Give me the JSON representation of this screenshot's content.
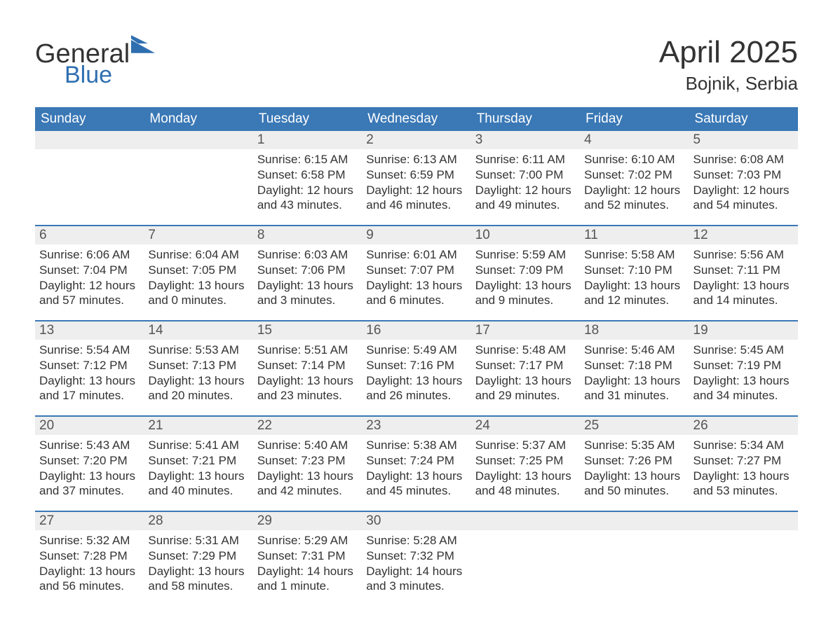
{
  "brand": {
    "word1": "General",
    "word2": "Blue",
    "color_general": "#333333",
    "color_blue": "#2f6fb0",
    "logo_fill": "#2f6fb0"
  },
  "header": {
    "month_title": "April 2025",
    "location": "Bojnik, Serbia"
  },
  "colors": {
    "header_bg": "#3a78b6",
    "header_text": "#ffffff",
    "daynum_bg": "#eeeeee",
    "body_text": "#333333",
    "rule": "#3a78b6"
  },
  "weekdays": [
    "Sunday",
    "Monday",
    "Tuesday",
    "Wednesday",
    "Thursday",
    "Friday",
    "Saturday"
  ],
  "weeks": [
    [
      {
        "day": "",
        "lines": []
      },
      {
        "day": "",
        "lines": []
      },
      {
        "day": "1",
        "lines": [
          "Sunrise: 6:15 AM",
          "Sunset: 6:58 PM",
          "Daylight: 12 hours and 43 minutes."
        ]
      },
      {
        "day": "2",
        "lines": [
          "Sunrise: 6:13 AM",
          "Sunset: 6:59 PM",
          "Daylight: 12 hours and 46 minutes."
        ]
      },
      {
        "day": "3",
        "lines": [
          "Sunrise: 6:11 AM",
          "Sunset: 7:00 PM",
          "Daylight: 12 hours and 49 minutes."
        ]
      },
      {
        "day": "4",
        "lines": [
          "Sunrise: 6:10 AM",
          "Sunset: 7:02 PM",
          "Daylight: 12 hours and 52 minutes."
        ]
      },
      {
        "day": "5",
        "lines": [
          "Sunrise: 6:08 AM",
          "Sunset: 7:03 PM",
          "Daylight: 12 hours and 54 minutes."
        ]
      }
    ],
    [
      {
        "day": "6",
        "lines": [
          "Sunrise: 6:06 AM",
          "Sunset: 7:04 PM",
          "Daylight: 12 hours and 57 minutes."
        ]
      },
      {
        "day": "7",
        "lines": [
          "Sunrise: 6:04 AM",
          "Sunset: 7:05 PM",
          "Daylight: 13 hours and 0 minutes."
        ]
      },
      {
        "day": "8",
        "lines": [
          "Sunrise: 6:03 AM",
          "Sunset: 7:06 PM",
          "Daylight: 13 hours and 3 minutes."
        ]
      },
      {
        "day": "9",
        "lines": [
          "Sunrise: 6:01 AM",
          "Sunset: 7:07 PM",
          "Daylight: 13 hours and 6 minutes."
        ]
      },
      {
        "day": "10",
        "lines": [
          "Sunrise: 5:59 AM",
          "Sunset: 7:09 PM",
          "Daylight: 13 hours and 9 minutes."
        ]
      },
      {
        "day": "11",
        "lines": [
          "Sunrise: 5:58 AM",
          "Sunset: 7:10 PM",
          "Daylight: 13 hours and 12 minutes."
        ]
      },
      {
        "day": "12",
        "lines": [
          "Sunrise: 5:56 AM",
          "Sunset: 7:11 PM",
          "Daylight: 13 hours and 14 minutes."
        ]
      }
    ],
    [
      {
        "day": "13",
        "lines": [
          "Sunrise: 5:54 AM",
          "Sunset: 7:12 PM",
          "Daylight: 13 hours and 17 minutes."
        ]
      },
      {
        "day": "14",
        "lines": [
          "Sunrise: 5:53 AM",
          "Sunset: 7:13 PM",
          "Daylight: 13 hours and 20 minutes."
        ]
      },
      {
        "day": "15",
        "lines": [
          "Sunrise: 5:51 AM",
          "Sunset: 7:14 PM",
          "Daylight: 13 hours and 23 minutes."
        ]
      },
      {
        "day": "16",
        "lines": [
          "Sunrise: 5:49 AM",
          "Sunset: 7:16 PM",
          "Daylight: 13 hours and 26 minutes."
        ]
      },
      {
        "day": "17",
        "lines": [
          "Sunrise: 5:48 AM",
          "Sunset: 7:17 PM",
          "Daylight: 13 hours and 29 minutes."
        ]
      },
      {
        "day": "18",
        "lines": [
          "Sunrise: 5:46 AM",
          "Sunset: 7:18 PM",
          "Daylight: 13 hours and 31 minutes."
        ]
      },
      {
        "day": "19",
        "lines": [
          "Sunrise: 5:45 AM",
          "Sunset: 7:19 PM",
          "Daylight: 13 hours and 34 minutes."
        ]
      }
    ],
    [
      {
        "day": "20",
        "lines": [
          "Sunrise: 5:43 AM",
          "Sunset: 7:20 PM",
          "Daylight: 13 hours and 37 minutes."
        ]
      },
      {
        "day": "21",
        "lines": [
          "Sunrise: 5:41 AM",
          "Sunset: 7:21 PM",
          "Daylight: 13 hours and 40 minutes."
        ]
      },
      {
        "day": "22",
        "lines": [
          "Sunrise: 5:40 AM",
          "Sunset: 7:23 PM",
          "Daylight: 13 hours and 42 minutes."
        ]
      },
      {
        "day": "23",
        "lines": [
          "Sunrise: 5:38 AM",
          "Sunset: 7:24 PM",
          "Daylight: 13 hours and 45 minutes."
        ]
      },
      {
        "day": "24",
        "lines": [
          "Sunrise: 5:37 AM",
          "Sunset: 7:25 PM",
          "Daylight: 13 hours and 48 minutes."
        ]
      },
      {
        "day": "25",
        "lines": [
          "Sunrise: 5:35 AM",
          "Sunset: 7:26 PM",
          "Daylight: 13 hours and 50 minutes."
        ]
      },
      {
        "day": "26",
        "lines": [
          "Sunrise: 5:34 AM",
          "Sunset: 7:27 PM",
          "Daylight: 13 hours and 53 minutes."
        ]
      }
    ],
    [
      {
        "day": "27",
        "lines": [
          "Sunrise: 5:32 AM",
          "Sunset: 7:28 PM",
          "Daylight: 13 hours and 56 minutes."
        ]
      },
      {
        "day": "28",
        "lines": [
          "Sunrise: 5:31 AM",
          "Sunset: 7:29 PM",
          "Daylight: 13 hours and 58 minutes."
        ]
      },
      {
        "day": "29",
        "lines": [
          "Sunrise: 5:29 AM",
          "Sunset: 7:31 PM",
          "Daylight: 14 hours and 1 minute."
        ]
      },
      {
        "day": "30",
        "lines": [
          "Sunrise: 5:28 AM",
          "Sunset: 7:32 PM",
          "Daylight: 14 hours and 3 minutes."
        ]
      },
      {
        "day": "",
        "lines": []
      },
      {
        "day": "",
        "lines": []
      },
      {
        "day": "",
        "lines": []
      }
    ]
  ]
}
